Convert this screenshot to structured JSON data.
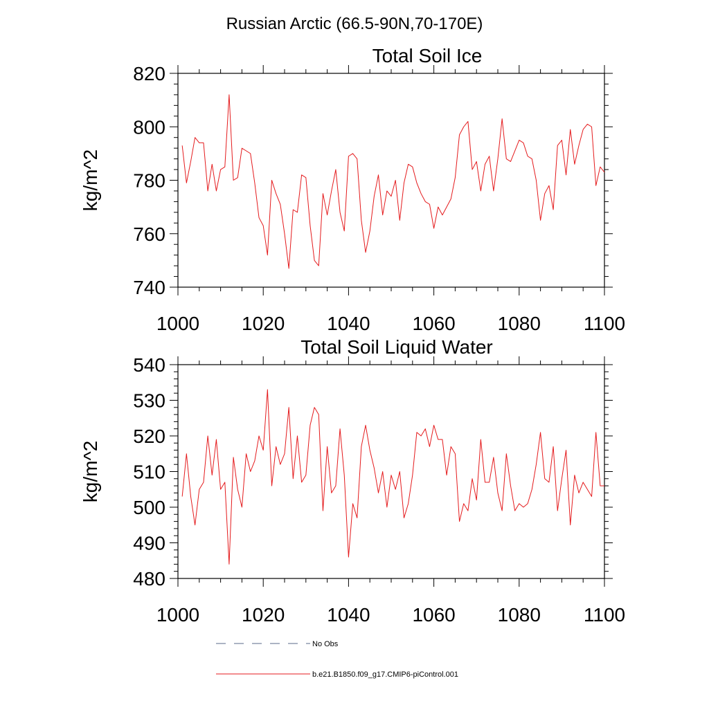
{
  "page": {
    "title": "Russian Arctic (66.5-90N,70-170E)"
  },
  "legend": {
    "placement": "bottom",
    "entries": [
      {
        "label": "No Obs",
        "color": "#5a6a8a",
        "style": "dashed"
      },
      {
        "label": "b.e21.B1850.f09_g17.CMIP6-piControl.001",
        "color": "#e41a1c",
        "style": "solid"
      }
    ]
  },
  "chart_data": [
    {
      "type": "line",
      "title": "Total Soil Ice",
      "xlabel": "",
      "ylabel": "kg/m^2",
      "xlim": [
        1000,
        1100
      ],
      "ylim": [
        740,
        820
      ],
      "xticks": [
        "1000",
        "1020",
        "1040",
        "1060",
        "1080",
        "1100"
      ],
      "yticks": [
        "740",
        "760",
        "780",
        "800",
        "820"
      ],
      "grid": false,
      "x_start": 1001,
      "x_step": 1,
      "series": [
        {
          "name": "b.e21.B1850.f09_g17.CMIP6-piControl.001",
          "color": "#e41a1c",
          "values": [
            793,
            779,
            787,
            796,
            794,
            794,
            776,
            786,
            776,
            784,
            785,
            812,
            780,
            781,
            792,
            791,
            790,
            779,
            766,
            763,
            752,
            780,
            775,
            771,
            760,
            747,
            769,
            768,
            782,
            781,
            763,
            750,
            748,
            775,
            767,
            776,
            784,
            768,
            761,
            789,
            790,
            788,
            765,
            753,
            761,
            774,
            782,
            767,
            776,
            774,
            780,
            765,
            779,
            786,
            785,
            779,
            775,
            772,
            771,
            762,
            770,
            767,
            770,
            773,
            781,
            797,
            800,
            802,
            784,
            787,
            776,
            786,
            789,
            776,
            788,
            803,
            788,
            787,
            791,
            795,
            794,
            789,
            788,
            780,
            765,
            775,
            778,
            769,
            793,
            795,
            782,
            799,
            786,
            793,
            799,
            801,
            800,
            778,
            785,
            783
          ]
        }
      ]
    },
    {
      "type": "line",
      "title": "Total Soil Liquid Water",
      "xlabel": "",
      "ylabel": "kg/m^2",
      "xlim": [
        1000,
        1100
      ],
      "ylim": [
        480,
        540
      ],
      "xticks": [
        "1000",
        "1020",
        "1040",
        "1060",
        "1080",
        "1100"
      ],
      "yticks": [
        "480",
        "490",
        "500",
        "510",
        "520",
        "530",
        "540"
      ],
      "grid": false,
      "x_start": 1001,
      "x_step": 1,
      "series": [
        {
          "name": "b.e21.B1850.f09_g17.CMIP6-piControl.001",
          "color": "#e41a1c",
          "values": [
            503,
            515,
            503,
            495,
            505,
            507,
            520,
            509,
            519,
            505,
            507,
            484,
            514,
            505,
            500,
            515,
            510,
            513,
            520,
            516,
            533,
            506,
            517,
            512,
            515,
            528,
            508,
            520,
            507,
            509,
            523,
            528,
            526,
            499,
            517,
            504,
            506,
            522,
            509,
            486,
            501,
            497,
            517,
            523,
            516,
            511,
            504,
            510,
            500,
            509,
            505,
            510,
            497,
            501,
            509,
            521,
            520,
            522,
            517,
            523,
            519,
            519,
            509,
            517,
            515,
            496,
            501,
            499,
            508,
            502,
            519,
            507,
            507,
            514,
            504,
            499,
            515,
            506,
            499,
            501,
            500,
            501,
            505,
            512,
            521,
            508,
            507,
            517,
            499,
            508,
            516,
            495,
            509,
            504,
            507,
            505,
            503,
            521,
            506,
            506
          ]
        }
      ]
    }
  ]
}
